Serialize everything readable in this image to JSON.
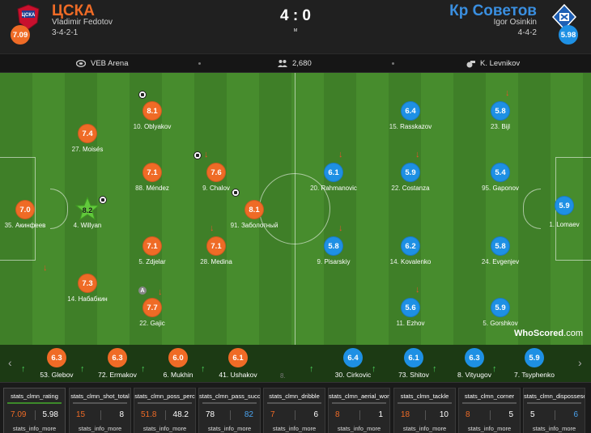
{
  "home": {
    "name": "ЦСКА",
    "manager": "Vladimir Fedotov",
    "formation": "3-4-2-1",
    "rating": "7.09",
    "color": "#ef6b26",
    "players": [
      {
        "num": "35.",
        "name": "Акинфеев",
        "rating": "7.0"
      },
      {
        "num": "27.",
        "name": "Moisés",
        "rating": "7.4"
      },
      {
        "num": "4.",
        "name": "Willyan",
        "rating": "8.2"
      },
      {
        "num": "14.",
        "name": "Набабкин",
        "rating": "7.3"
      },
      {
        "num": "10.",
        "name": "Oblyakov",
        "rating": "8.1"
      },
      {
        "num": "88.",
        "name": "Méndez",
        "rating": "7.1"
      },
      {
        "num": "5.",
        "name": "Zdjelar",
        "rating": "7.1"
      },
      {
        "num": "22.",
        "name": "Gajic",
        "rating": "7.7"
      },
      {
        "num": "9.",
        "name": "Chalov",
        "rating": "7.6"
      },
      {
        "num": "28.",
        "name": "Medina",
        "rating": "7.1"
      },
      {
        "num": "91.",
        "name": "Заболотный",
        "rating": "8.1"
      }
    ],
    "subs": [
      {
        "num": "53.",
        "name": "Glebov",
        "rating": "6.3"
      },
      {
        "num": "72.",
        "name": "Ermakov",
        "rating": "6.3"
      },
      {
        "num": "6.",
        "name": "Mukhin",
        "rating": "6.0"
      },
      {
        "num": "41.",
        "name": "Ushakov",
        "rating": "6.1"
      }
    ],
    "bench_more": "8."
  },
  "away": {
    "name": "Кр Советов",
    "manager": "Igor Osinkin",
    "formation": "4-4-2",
    "rating": "5.98",
    "color": "#1e90e4",
    "players": [
      {
        "num": "1.",
        "name": "Lomaev",
        "rating": "5.9"
      },
      {
        "num": "20.",
        "name": "Rahmanovic",
        "rating": "6.1"
      },
      {
        "num": "9.",
        "name": "Pisarskiy",
        "rating": "5.8"
      },
      {
        "num": "15.",
        "name": "Rasskazov",
        "rating": "6.4"
      },
      {
        "num": "22.",
        "name": "Costanza",
        "rating": "5.9"
      },
      {
        "num": "14.",
        "name": "Kovalenko",
        "rating": "6.2"
      },
      {
        "num": "11.",
        "name": "Ezhov",
        "rating": "5.6"
      },
      {
        "num": "23.",
        "name": "Bijl",
        "rating": "5.8"
      },
      {
        "num": "95.",
        "name": "Gaponov",
        "rating": "5.4"
      },
      {
        "num": "24.",
        "name": "Evgenjev",
        "rating": "5.8"
      },
      {
        "num": "5.",
        "name": "Gorshkov",
        "rating": "5.9"
      }
    ],
    "subs": [
      {
        "num": "30.",
        "name": "Cirkovic",
        "rating": "6.4"
      },
      {
        "num": "73.",
        "name": "Shitov",
        "rating": "6.1"
      },
      {
        "num": "8.",
        "name": "Vityugov",
        "rating": "6.3"
      },
      {
        "num": "7.",
        "name": "Tsyphenko",
        "rating": "5.9"
      }
    ]
  },
  "match": {
    "score": "4 : 0",
    "status": "м",
    "venue": "VEB Arena",
    "attendance": "2,680",
    "referee": "K. Levnikov"
  },
  "captain_mark": "A",
  "watermark": {
    "brand": "WhoScored",
    "suffix": ".com"
  },
  "icons": {
    "stadium": "stadium-icon",
    "attendance": "crowd-icon",
    "referee": "whistle-icon",
    "goal": "football-icon",
    "sub_off": "arrow-down-icon",
    "sub_on": "arrow-up-icon",
    "captain": "captain-armband-icon",
    "mom": "star-icon"
  },
  "stats": [
    {
      "label": "stats_clmn_rating",
      "home": "7.09",
      "away": "5.98",
      "more": "stats_info_more"
    },
    {
      "label": "stats_clmn_shot_total",
      "home": "15",
      "away": "8",
      "more": "stats_info_more"
    },
    {
      "label": "stats_clmn_poss_perc",
      "home": "51.8",
      "away": "48.2",
      "more": "stats_info_more"
    },
    {
      "label": "stats_clmn_pass_succ",
      "home": "78",
      "away": "82",
      "more": "stats_info_more"
    },
    {
      "label": "stats_clmn_dribble",
      "home": "7",
      "away": "6",
      "more": "stats_info_more"
    },
    {
      "label": "stats_clmn_aerial_won",
      "home": "8",
      "away": "1",
      "more": "stats_info_more"
    },
    {
      "label": "stats_clmn_tackle",
      "home": "18",
      "away": "10",
      "more": "stats_info_more"
    },
    {
      "label": "stats_clmn_corner",
      "home": "8",
      "away": "5",
      "more": "stats_info_more"
    },
    {
      "label": "stats_clmn_dispossesed",
      "home": "5",
      "away": "6",
      "more": "stats_info_more"
    }
  ]
}
